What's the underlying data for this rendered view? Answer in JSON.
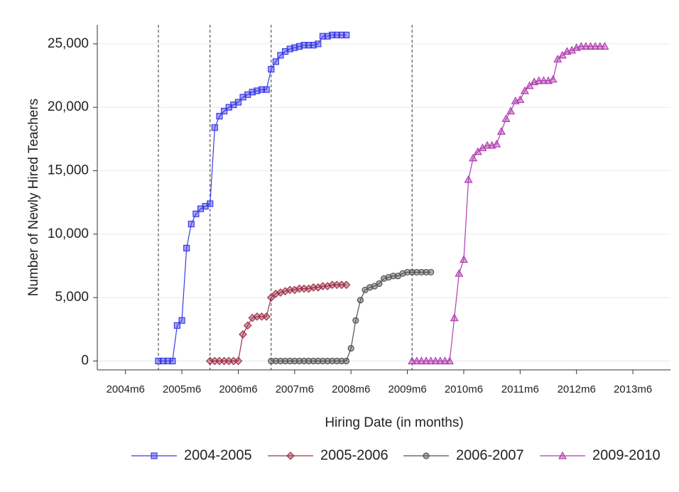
{
  "chart_data": {
    "type": "line",
    "x_label": "Hiring Date (in months)",
    "y_label": "Number of Newly Hired Teachers",
    "xlim": [
      "2003m12",
      "2014m2"
    ],
    "xticks": [
      "2004m6",
      "2005m6",
      "2006m6",
      "2007m6",
      "2008m6",
      "2009m6",
      "2010m6",
      "2011m6",
      "2012m6",
      "2013m6"
    ],
    "ylim": [
      -700,
      26500
    ],
    "yticks": [
      0,
      {
        "value": 5000,
        "label": "5,000"
      },
      {
        "value": 10000,
        "label": "10,000"
      },
      {
        "value": 15000,
        "label": "15,000"
      },
      {
        "value": 20000,
        "label": "20,000"
      },
      {
        "value": 25000,
        "label": "25,000"
      }
    ],
    "grid": true,
    "vlines": [
      "2005m1",
      "2005m12",
      "2007m1",
      "2009m7"
    ],
    "legend": "bottom",
    "series": [
      {
        "name": "2004-2005",
        "color": "#3a3ae8",
        "marker": "square",
        "x": [
          "2005m1",
          "2005m2",
          "2005m3",
          "2005m4",
          "2005m5",
          "2005m6",
          "2005m7",
          "2005m8",
          "2005m9",
          "2005m10",
          "2005m11",
          "2005m12",
          "2006m1",
          "2006m2",
          "2006m3",
          "2006m4",
          "2006m5",
          "2006m6",
          "2006m7",
          "2006m8",
          "2006m9",
          "2006m10",
          "2006m11",
          "2006m12",
          "2007m1",
          "2007m2",
          "2007m3",
          "2007m4",
          "2007m5",
          "2007m6",
          "2007m7",
          "2007m8",
          "2007m9",
          "2007m10",
          "2007m11",
          "2007m12",
          "2008m1",
          "2008m2",
          "2008m3",
          "2008m4",
          "2008m5"
        ],
        "values": [
          0,
          0,
          0,
          0,
          2800,
          3200,
          8900,
          10800,
          11600,
          12000,
          12200,
          12400,
          18400,
          19300,
          19700,
          20000,
          20200,
          20400,
          20800,
          21000,
          21200,
          21300,
          21400,
          21400,
          23000,
          23600,
          24100,
          24400,
          24600,
          24700,
          24800,
          24900,
          24900,
          24900,
          25000,
          25600,
          25600,
          25700,
          25700,
          25700,
          25700
        ]
      },
      {
        "name": "2005-2006",
        "color": "#9e3048",
        "marker": "diamond",
        "x": [
          "2005m12",
          "2006m1",
          "2006m2",
          "2006m3",
          "2006m4",
          "2006m5",
          "2006m6",
          "2006m7",
          "2006m8",
          "2006m9",
          "2006m10",
          "2006m11",
          "2006m12",
          "2007m1",
          "2007m2",
          "2007m3",
          "2007m4",
          "2007m5",
          "2007m6",
          "2007m7",
          "2007m8",
          "2007m9",
          "2007m10",
          "2007m11",
          "2007m12",
          "2008m1",
          "2008m2",
          "2008m3",
          "2008m4",
          "2008m5"
        ],
        "values": [
          0,
          0,
          0,
          0,
          0,
          0,
          0,
          2100,
          2800,
          3400,
          3500,
          3500,
          3500,
          5000,
          5300,
          5400,
          5500,
          5600,
          5600,
          5700,
          5700,
          5700,
          5800,
          5800,
          5900,
          5900,
          6000,
          6000,
          6000,
          6000
        ]
      },
      {
        "name": "2006-2007",
        "color": "#505050",
        "marker": "circle",
        "x": [
          "2007m1",
          "2007m2",
          "2007m3",
          "2007m4",
          "2007m5",
          "2007m6",
          "2007m7",
          "2007m8",
          "2007m9",
          "2007m10",
          "2007m11",
          "2007m12",
          "2008m1",
          "2008m2",
          "2008m3",
          "2008m4",
          "2008m5",
          "2008m6",
          "2008m7",
          "2008m8",
          "2008m9",
          "2008m10",
          "2008m11",
          "2008m12",
          "2009m1",
          "2009m2",
          "2009m3",
          "2009m4",
          "2009m5",
          "2009m6",
          "2009m7",
          "2009m8",
          "2009m9",
          "2009m10",
          "2009m11"
        ],
        "values": [
          0,
          0,
          0,
          0,
          0,
          0,
          0,
          0,
          0,
          0,
          0,
          0,
          0,
          0,
          0,
          0,
          0,
          1000,
          3200,
          4800,
          5600,
          5800,
          5900,
          6100,
          6500,
          6600,
          6700,
          6700,
          6900,
          7000,
          7000,
          7000,
          7000,
          7000,
          7000
        ]
      },
      {
        "name": "2009-2010",
        "color": "#b03cb0",
        "marker": "triangle",
        "x": [
          "2009m7",
          "2009m8",
          "2009m9",
          "2009m10",
          "2009m11",
          "2009m12",
          "2010m1",
          "2010m2",
          "2010m3",
          "2010m4",
          "2010m5",
          "2010m6",
          "2010m7",
          "2010m8",
          "2010m9",
          "2010m10",
          "2010m11",
          "2010m12",
          "2011m1",
          "2011m2",
          "2011m3",
          "2011m4",
          "2011m5",
          "2011m6",
          "2011m7",
          "2011m8",
          "2011m9",
          "2011m10",
          "2011m11",
          "2011m12",
          "2012m1",
          "2012m2",
          "2012m3",
          "2012m4",
          "2012m5",
          "2012m6",
          "2012m7",
          "2012m8",
          "2012m9",
          "2012m10",
          "2012m11",
          "2012m12"
        ],
        "values": [
          0,
          0,
          0,
          0,
          0,
          0,
          0,
          0,
          0,
          3400,
          6900,
          8000,
          14300,
          16000,
          16500,
          16800,
          17000,
          17000,
          17100,
          18100,
          19100,
          19700,
          20500,
          20600,
          21300,
          21700,
          22000,
          22100,
          22100,
          22100,
          22200,
          23800,
          24100,
          24400,
          24500,
          24700,
          24800,
          24800,
          24800,
          24800,
          24800,
          24800
        ]
      }
    ]
  }
}
